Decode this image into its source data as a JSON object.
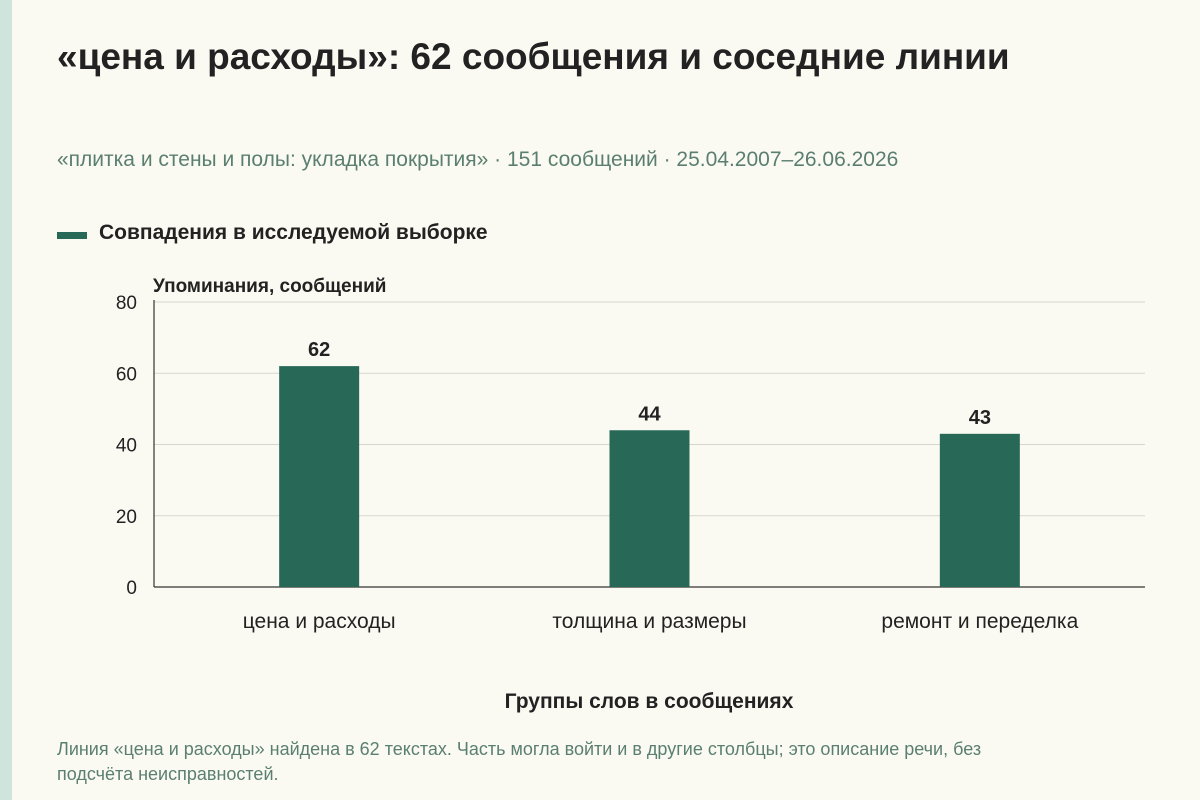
{
  "header": {
    "title": "«цена и расходы»: 62 сообщения и соседние линии",
    "subtitle": "«плитка и стены и полы: укладка покрытия» · 151 сообщений · 25.04.2007–26.06.2026"
  },
  "legend": {
    "label": "Совпадения в исследуемой выборке",
    "color": "#276856"
  },
  "footnote": "Линия «цена и расходы» найдена в 62 текстах. Часть могла войти и в другие столбцы; это описание речи, без подсчёта неисправностей.",
  "chart_data": {
    "type": "bar",
    "title": "«цена и расходы»: 62 сообщения и соседние линии",
    "subtitle": "«плитка и стены и полы: укладка покрытия» · 151 сообщений · 25.04.2007–26.06.2026",
    "ylabel": "Упоминания, сообщений",
    "xlabel": "Группы слов в сообщениях",
    "categories": [
      "цена и расходы",
      "толщина и размеры",
      "ремонт и переделка"
    ],
    "series": [
      {
        "name": "Совпадения в исследуемой выборке",
        "values": [
          62,
          44,
          43
        ],
        "color": "#276856"
      }
    ],
    "ylim": [
      0,
      80
    ],
    "yticks": [
      0,
      20,
      40,
      60,
      80
    ],
    "grid": true,
    "legend_position": "top-left"
  }
}
